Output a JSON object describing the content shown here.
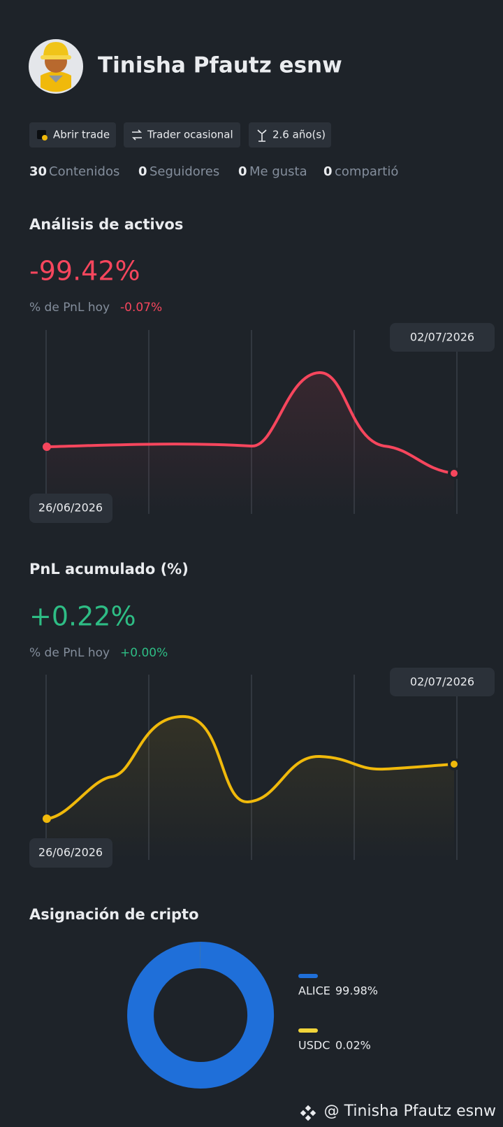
{
  "profile": {
    "name": "Tinisha Pfautz esnw",
    "tags": [
      "Abrir trade",
      "Trader ocasional",
      "2.6 año(s)"
    ],
    "stats": [
      {
        "count": 30,
        "label": "Contenidos"
      },
      {
        "count": 0,
        "label": "Seguidores"
      },
      {
        "count": 0,
        "label": "Me gusta"
      },
      {
        "count": 0,
        "label": "compartió"
      }
    ]
  },
  "asset_analysis": {
    "title": "Análisis de activos",
    "value": "-99.42%",
    "subtitle": "% de PnL hoy",
    "change": "-0.07%",
    "start_date": "26/06/2026",
    "end_date": "02/07/2026"
  },
  "cumulative_pnl": {
    "title": "PnL acumulado (%)",
    "value": "+0.22%",
    "subtitle": "% de PnL hoy",
    "change": "+0.00%",
    "start_date": "26/06/2026",
    "end_date": "02/07/2026"
  },
  "allocation": {
    "title": "Asignación de cripto",
    "items": [
      {
        "name": "ALICE",
        "value": 99.98,
        "value_label": "99.98%",
        "color": "#1f6fd9"
      },
      {
        "name": "USDC",
        "value": 0.02,
        "value_label": "0.02%",
        "color": "#f0d43a"
      }
    ]
  },
  "watermark": "@ Tinisha Pfautz esnw"
}
